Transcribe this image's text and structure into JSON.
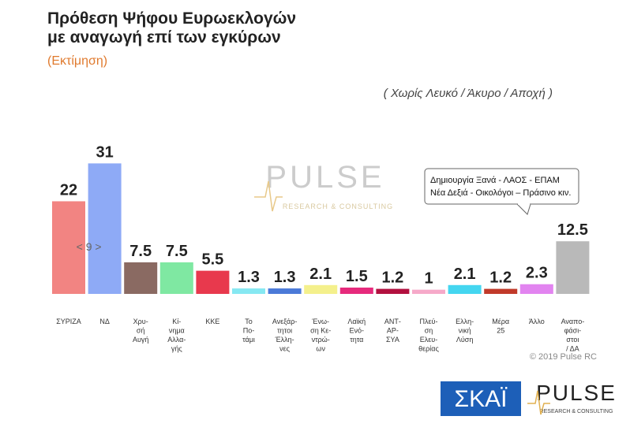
{
  "chart_data": {
    "type": "bar",
    "title": "Πρόθεση Ψήφου Ευρωεκλογών\nμε αναγωγή επί των εγκύρων",
    "subtitle": "(Εκτίμηση)",
    "note": "( Χωρίς Λευκό / Άκυρο / Αποχή )",
    "annotation": "Δημιουργία Ξανά - ΛΑΟΣ - ΕΠΑΜ\nΝέα Δεξιά - Οικολόγοι – Πράσινο κιν.",
    "gap_label": "< 9 >",
    "copyright": "© 2019 Pulse RC",
    "watermark": "PULSE",
    "watermark_sub": "RESEARCH & CONSULTING",
    "logo_left": "ΣΚΑΪ",
    "categories": [
      "ΣΥΡΙΖΑ",
      "ΝΔ",
      "Χρυ-\nσή\nΑυγή",
      "Κί-\nνημα\nΑλλα-\nγής",
      "ΚΚΕ",
      "Το\nΠο-\nτάμι",
      "Ανεξάρ-\nτητοι\nΈλλη-\nνες",
      "Ένω-\nση Κε-\nντρώ-\nων",
      "Λαϊκή\nΕνό-\nτητα",
      "ΑΝΤ-\nΑΡ-\nΣΥΑ",
      "Πλεύ-\nση\nΕλευ-\nθερίας",
      "Ελλη-\nνική\nΛύση",
      "Μέρα\n25",
      "Άλλο",
      "Αναπο-\nφάσι-\nστοι\n/ ΔΑ"
    ],
    "values": [
      22,
      31,
      7.5,
      7.5,
      5.5,
      1.3,
      1.3,
      2.1,
      1.5,
      1.2,
      1,
      2.1,
      1.2,
      2.3,
      12.5
    ],
    "colors": [
      "#f28482",
      "#8eaaf6",
      "#8a6a62",
      "#7fe8a2",
      "#e8394d",
      "#86e8f2",
      "#4b7ad8",
      "#f4f08c",
      "#e62a7c",
      "#b2103f",
      "#f6a9c9",
      "#44d6f0",
      "#c13a2a",
      "#e284f0",
      "#b9b9b9"
    ],
    "ylim": [
      0,
      35
    ]
  }
}
